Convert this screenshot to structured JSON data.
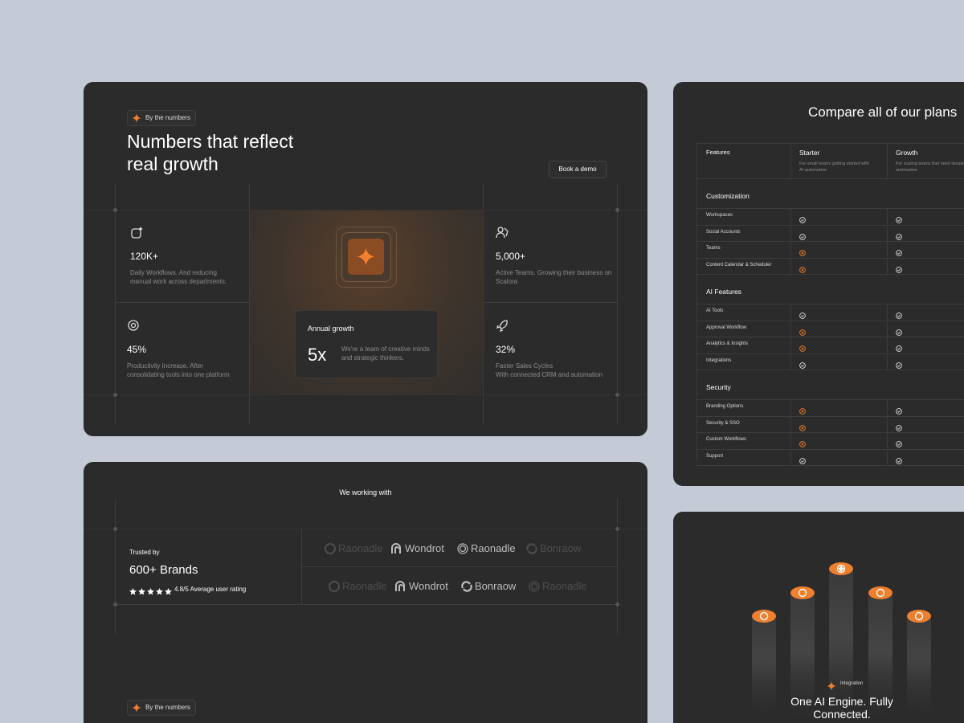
{
  "badge": "By the numbers",
  "hero": {
    "title_lines": [
      "Numbers that reflect",
      "real growth"
    ],
    "button": "Book a demo"
  },
  "stats": [
    {
      "value": "120K+",
      "description_lines": [
        "Daily Workflows. And reducing",
        "manual work across departments."
      ]
    },
    {
      "value": "45%",
      "description_lines": [
        "Productivity Increase. After",
        "consolidating tools into one platform"
      ]
    },
    {
      "value": "5,000+",
      "description_lines": [
        "Active Teams. Growing their business on",
        "Scalora"
      ]
    },
    {
      "value": "32%",
      "description_lines": [
        "Faster Sales Cycles",
        "With connected CRM and automation"
      ]
    }
  ],
  "growth": {
    "label": "Annual growth",
    "value": "5x",
    "description_lines": [
      "We're a team of creative minds",
      "and  strategic thinkers."
    ]
  },
  "partners": {
    "title": "We working with",
    "trusted_label": "Trusted by",
    "brands": "600+ Brands",
    "rating": "4.8/5 Average user rating",
    "logo_rows": [
      [
        "Raonadle",
        "Wondrot",
        "Raonadle",
        "Bonraow"
      ],
      [
        "Raonadle",
        "Wondrot",
        "Bonraow",
        "Raonadle"
      ]
    ],
    "badge": "By the numbers"
  },
  "plans": {
    "title": "Compare all of our plans",
    "features_header": "Features",
    "plans": [
      {
        "name": "Starter",
        "description": "For small teams getting started with AI automation"
      },
      {
        "name": "Growth",
        "description": "For scaling teams that need deeper automation"
      }
    ],
    "sections": [
      {
        "name": "Customization",
        "rows": [
          {
            "feature": "Workspaces",
            "starter": true,
            "growth": true
          },
          {
            "feature": "Social Accounts",
            "starter": true,
            "growth": true
          },
          {
            "feature": "Teams",
            "starter": false,
            "growth": true
          },
          {
            "feature": "Content Calendar & Scheduler",
            "starter": false,
            "growth": true
          }
        ]
      },
      {
        "name": "AI Features",
        "rows": [
          {
            "feature": "AI Tools",
            "starter": true,
            "growth": true
          },
          {
            "feature": "Approval Workflow",
            "starter": false,
            "growth": true
          },
          {
            "feature": "Analytics & Insights",
            "starter": false,
            "growth": true
          },
          {
            "feature": "Integrations",
            "starter": true,
            "growth": true
          }
        ]
      },
      {
        "name": "Security",
        "rows": [
          {
            "feature": "Branding Options",
            "starter": false,
            "growth": true
          },
          {
            "feature": "Security & SSO",
            "starter": false,
            "growth": true
          },
          {
            "feature": "Custom Workflows",
            "starter": false,
            "growth": true
          },
          {
            "feature": "Support",
            "starter": true,
            "growth": true
          }
        ]
      }
    ]
  },
  "integration": {
    "badge": "Integration",
    "title_lines": [
      "One AI Engine. Fully",
      "Connected."
    ]
  }
}
